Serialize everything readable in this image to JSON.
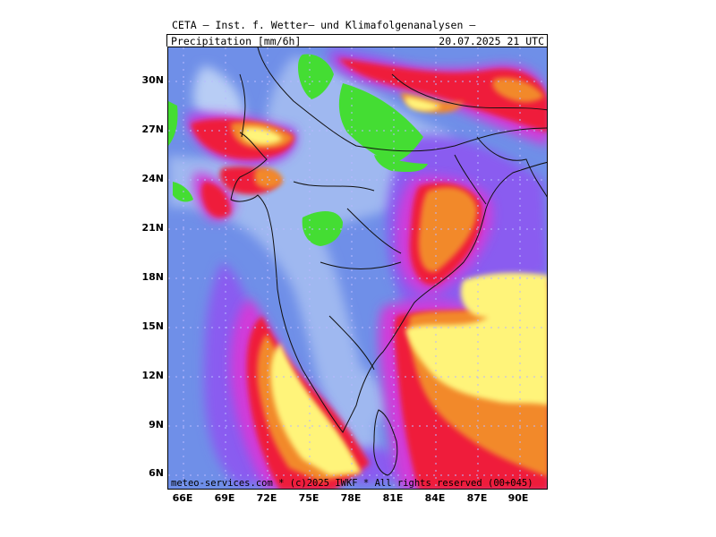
{
  "header": {
    "source": "CETA — Inst. f. Wetter— und Klimafolgenanalysen —",
    "parameter": "Precipitation [mm/6h]",
    "valid_time": "20.07.2025 21 UTC"
  },
  "footer": {
    "credit": "meteo-services.com * (c)2025 IWKF * All rights reserved (00+045)"
  },
  "axes": {
    "latitudes": [
      "30N",
      "27N",
      "24N",
      "21N",
      "18N",
      "15N",
      "12N",
      "9N",
      "6N"
    ],
    "longitudes": [
      "66E",
      "69E",
      "72E",
      "75E",
      "78E",
      "81E",
      "84E",
      "87E",
      "90E"
    ]
  },
  "colors": {
    "no_rain_green": "#44dd33",
    "light_blue": "#9fb8f0",
    "blue": "#6f8fe8",
    "violet": "#8a5cf0",
    "magenta": "#d13ad9",
    "red": "#ef1f3a",
    "orange": "#f2892a",
    "yellow": "#fff47a"
  }
}
